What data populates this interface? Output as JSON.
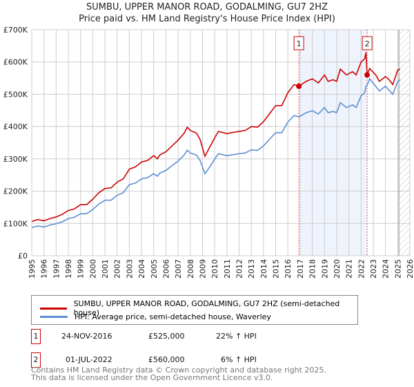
{
  "chart_data": {
    "type": "line",
    "title": "SUMBU, UPPER MANOR ROAD, GODALMING, GU7 2HZ",
    "subtitle": "Price paid vs. HM Land Registry's House Price Index (HPI)",
    "xlim": [
      1995,
      2026
    ],
    "ylim": [
      0,
      700000
    ],
    "y_ticks": [
      "£0",
      "£100K",
      "£200K",
      "£300K",
      "£400K",
      "£500K",
      "£600K",
      "£700K"
    ],
    "x_ticks": [
      "1995",
      "1996",
      "1997",
      "1998",
      "1999",
      "2000",
      "2001",
      "2002",
      "2003",
      "2004",
      "2005",
      "2006",
      "2007",
      "2008",
      "2009",
      "2010",
      "2011",
      "2012",
      "2013",
      "2014",
      "2015",
      "2016",
      "2017",
      "2018",
      "2019",
      "2020",
      "2021",
      "2022",
      "2023",
      "2024",
      "2025",
      "2026"
    ],
    "x": [
      1995,
      1995.5,
      1996,
      1996.5,
      1997,
      1997.5,
      1998,
      1998.5,
      1999,
      1999.5,
      2000,
      2000.5,
      2001,
      2001.5,
      2002,
      2002.5,
      2003,
      2003.5,
      2004,
      2004.5,
      2005,
      2005.3,
      2005.5,
      2006,
      2006.5,
      2007,
      2007.5,
      2007.75,
      2008,
      2008.5,
      2008.8,
      2009.2,
      2009.5,
      2010,
      2010.3,
      2011,
      2011.5,
      2012,
      2012.5,
      2013,
      2013.5,
      2014,
      2014.5,
      2015,
      2015.5,
      2016,
      2016.5,
      2016.9,
      2017.5,
      2018,
      2018.5,
      2019,
      2019.3,
      2019.7,
      2020,
      2020.3,
      2020.8,
      2021.3,
      2021.6,
      2022,
      2022.3,
      2022.4,
      2022.5,
      2022.7,
      2023.2,
      2023.5,
      2024,
      2024.3,
      2024.6,
      2025,
      2025.2
    ],
    "series": [
      {
        "name": "SUMBU, UPPER MANOR ROAD, GODALMING, GU7 2HZ (semi-detached house)",
        "color": "#cc0000",
        "values": [
          106000,
          112000,
          108000,
          115000,
          120000,
          128000,
          140000,
          145000,
          158000,
          158000,
          175000,
          195000,
          208000,
          210000,
          228000,
          238000,
          268000,
          275000,
          290000,
          295000,
          310000,
          300000,
          312000,
          322000,
          340000,
          358000,
          380000,
          398000,
          388000,
          380000,
          360000,
          308000,
          330000,
          365000,
          385000,
          378000,
          382000,
          385000,
          388000,
          400000,
          398000,
          415000,
          440000,
          465000,
          465000,
          505000,
          530000,
          525000,
          540000,
          548000,
          535000,
          560000,
          540000,
          545000,
          540000,
          578000,
          560000,
          570000,
          560000,
          600000,
          610000,
          630000,
          560000,
          580000,
          560000,
          540000,
          555000,
          545000,
          530000,
          575000,
          578000
        ]
      },
      {
        "name": "HPI: Average price, semi-detached house, Waverley",
        "color": "#5b8fd4",
        "values": [
          87000,
          92000,
          89000,
          95000,
          99000,
          105000,
          115000,
          119000,
          130000,
          130000,
          143000,
          160000,
          172000,
          172000,
          187000,
          195000,
          220000,
          225000,
          238000,
          242000,
          254000,
          246000,
          256000,
          264000,
          279000,
          293000,
          312000,
          327000,
          318000,
          312000,
          295000,
          254000,
          270000,
          299000,
          316000,
          310000,
          313000,
          316000,
          318000,
          328000,
          326000,
          340000,
          361000,
          381000,
          381000,
          414000,
          434000,
          430000,
          443000,
          449000,
          439000,
          459000,
          443000,
          447000,
          443000,
          474000,
          459000,
          467000,
          459000,
          495000,
          505000,
          525000,
          528000,
          548000,
          525000,
          510000,
          525000,
          512000,
          500000,
          540000,
          545000
        ]
      }
    ],
    "sales": [
      {
        "id": "1",
        "date": "24-NOV-2016",
        "x": 2016.9,
        "price": "£525,000",
        "value": 525000,
        "hpi": "22% ↑ HPI"
      },
      {
        "id": "2",
        "date": "01-JUL-2022",
        "x": 2022.5,
        "price": "£560,000",
        "value": 560000,
        "hpi": "6% ↑ HPI"
      }
    ],
    "shaded_range": [
      2016.9,
      2022.5
    ],
    "forecast_from": 2025.1
  },
  "footer": {
    "line1": "Contains HM Land Registry data © Crown copyright and database right 2025.",
    "line2": "This data is licensed under the Open Government Licence v3.0."
  }
}
